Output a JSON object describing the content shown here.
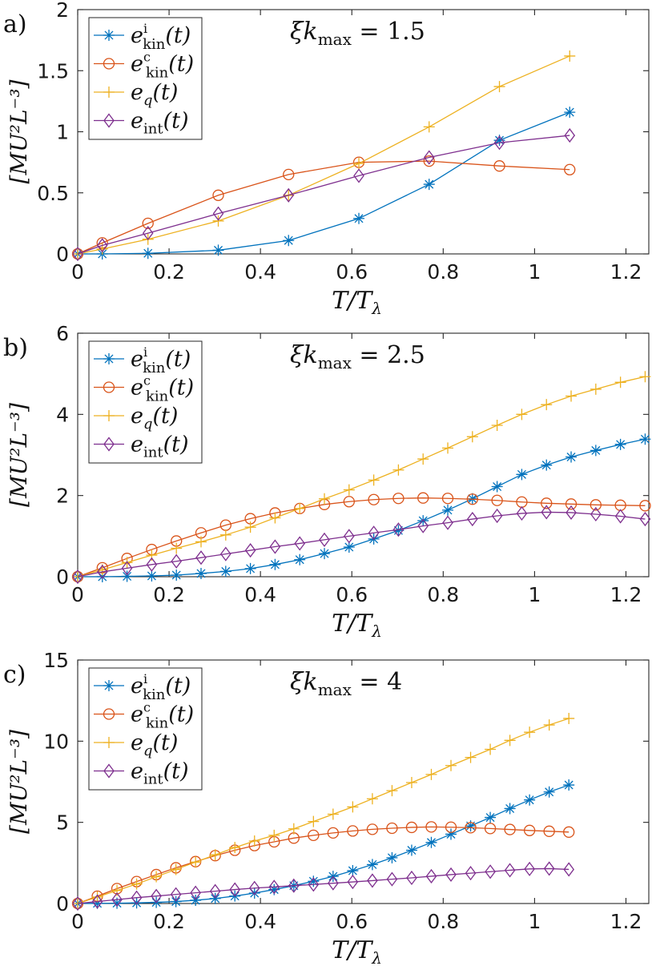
{
  "chart_data": [
    {
      "type": "line",
      "panel": "a)",
      "annotation": {
        "lhs": "ξk",
        "sub": "max",
        "rhs": "= 1.5"
      },
      "xlabel": {
        "main": "T/T",
        "sub": "λ"
      },
      "ylabel": "[MU²L⁻³]",
      "xlim": [
        0,
        1.25
      ],
      "ylim": [
        0,
        2
      ],
      "xticks": [
        "0",
        "0.2",
        "0.4",
        "0.6",
        "0.8",
        "1",
        "1.2"
      ],
      "yticks": [
        "0",
        "0.5",
        "1",
        "1.5",
        "2"
      ],
      "legend": {
        "position": "top-left"
      },
      "series": [
        {
          "name": "e_kin^i(t)",
          "label": {
            "base": "e",
            "sup": "i",
            "sub": "kin",
            "arg": "(t)"
          },
          "color": "#0072BD",
          "marker": "asterisk",
          "x": [
            0,
            0.0538,
            0.1538,
            0.3077,
            0.4615,
            0.6154,
            0.7692,
            0.9231,
            1.0769
          ],
          "y": [
            0,
            0,
            0.005,
            0.03,
            0.11,
            0.29,
            0.57,
            0.93,
            1.16
          ]
        },
        {
          "name": "e_kin^c(t)",
          "label": {
            "base": "e",
            "sup": "c",
            "sub": "kin",
            "arg": "(t)"
          },
          "color": "#D95319",
          "marker": "circle",
          "x": [
            0,
            0.0538,
            0.1538,
            0.3077,
            0.4615,
            0.6154,
            0.7692,
            0.9231,
            1.0769
          ],
          "y": [
            0,
            0.09,
            0.25,
            0.48,
            0.65,
            0.75,
            0.76,
            0.72,
            0.69
          ]
        },
        {
          "name": "e_q(t)",
          "label": {
            "base": "e",
            "sup": "",
            "sub": "q",
            "arg": "(t)"
          },
          "color": "#EDB120",
          "marker": "plus",
          "x": [
            0,
            0.0538,
            0.1538,
            0.3077,
            0.4615,
            0.6154,
            0.7692,
            0.9231,
            1.0769
          ],
          "y": [
            0,
            0.04,
            0.12,
            0.27,
            0.48,
            0.74,
            1.04,
            1.37,
            1.62
          ]
        },
        {
          "name": "e_int(t)",
          "label": {
            "base": "e",
            "sup": "",
            "sub": "int",
            "arg": "(t)"
          },
          "color": "#7E2F8E",
          "marker": "diamond",
          "x": [
            0,
            0.0538,
            0.1538,
            0.3077,
            0.4615,
            0.6154,
            0.7692,
            0.9231,
            1.0769
          ],
          "y": [
            0,
            0.07,
            0.17,
            0.33,
            0.48,
            0.64,
            0.79,
            0.91,
            0.97
          ]
        }
      ]
    },
    {
      "type": "line",
      "panel": "b)",
      "annotation": {
        "lhs": "ξk",
        "sub": "max",
        "rhs": "= 2.5"
      },
      "xlabel": {
        "main": "T/T",
        "sub": "λ"
      },
      "ylabel": "[MU²L⁻³]",
      "xlim": [
        0,
        1.25
      ],
      "ylim": [
        0,
        6
      ],
      "xticks": [
        "0",
        "0.2",
        "0.4",
        "0.6",
        "0.8",
        "1",
        "1.2"
      ],
      "yticks": [
        "0",
        "2",
        "4",
        "6"
      ],
      "legend": {
        "position": "top-left"
      },
      "series": [
        {
          "name": "e_kin^i(t)",
          "label": {
            "base": "e",
            "sup": "i",
            "sub": "kin",
            "arg": "(t)"
          },
          "color": "#0072BD",
          "marker": "asterisk",
          "x": [
            0,
            0.054,
            0.108,
            0.162,
            0.216,
            0.27,
            0.324,
            0.378,
            0.432,
            0.486,
            0.54,
            0.594,
            0.648,
            0.702,
            0.756,
            0.81,
            0.864,
            0.918,
            0.972,
            1.026,
            1.08,
            1.134,
            1.188,
            1.242
          ],
          "y": [
            0,
            0,
            0.01,
            0.02,
            0.04,
            0.08,
            0.13,
            0.2,
            0.3,
            0.42,
            0.57,
            0.73,
            0.93,
            1.14,
            1.38,
            1.64,
            1.92,
            2.22,
            2.52,
            2.75,
            2.95,
            3.11,
            3.26,
            3.39
          ]
        },
        {
          "name": "e_kin^c(t)",
          "label": {
            "base": "e",
            "sup": "c",
            "sub": "kin",
            "arg": "(t)"
          },
          "color": "#D95319",
          "marker": "circle",
          "x": [
            0,
            0.054,
            0.108,
            0.162,
            0.216,
            0.27,
            0.324,
            0.378,
            0.432,
            0.486,
            0.54,
            0.594,
            0.648,
            0.702,
            0.756,
            0.81,
            0.864,
            0.918,
            0.972,
            1.026,
            1.08,
            1.134,
            1.188,
            1.242
          ],
          "y": [
            0,
            0.22,
            0.45,
            0.67,
            0.88,
            1.08,
            1.27,
            1.43,
            1.57,
            1.68,
            1.78,
            1.85,
            1.9,
            1.93,
            1.94,
            1.93,
            1.91,
            1.88,
            1.84,
            1.81,
            1.79,
            1.77,
            1.76,
            1.75
          ]
        },
        {
          "name": "e_q(t)",
          "label": {
            "base": "e",
            "sup": "",
            "sub": "q",
            "arg": "(t)"
          },
          "color": "#EDB120",
          "marker": "plus",
          "x": [
            0,
            0.054,
            0.108,
            0.162,
            0.216,
            0.27,
            0.324,
            0.378,
            0.432,
            0.486,
            0.54,
            0.594,
            0.648,
            0.702,
            0.756,
            0.81,
            0.864,
            0.918,
            0.972,
            1.026,
            1.08,
            1.134,
            1.188,
            1.242
          ],
          "y": [
            0,
            0.17,
            0.35,
            0.53,
            0.7,
            0.86,
            1.03,
            1.22,
            1.45,
            1.68,
            1.92,
            2.14,
            2.38,
            2.63,
            2.9,
            3.17,
            3.45,
            3.73,
            4.0,
            4.24,
            4.45,
            4.62,
            4.79,
            4.93
          ]
        },
        {
          "name": "e_int(t)",
          "label": {
            "base": "e",
            "sup": "",
            "sub": "int",
            "arg": "(t)"
          },
          "color": "#7E2F8E",
          "marker": "diamond",
          "x": [
            0,
            0.054,
            0.108,
            0.162,
            0.216,
            0.27,
            0.324,
            0.378,
            0.432,
            0.486,
            0.54,
            0.594,
            0.648,
            0.702,
            0.756,
            0.81,
            0.864,
            0.918,
            0.972,
            1.026,
            1.08,
            1.134,
            1.188,
            1.242
          ],
          "y": [
            0,
            0.12,
            0.21,
            0.3,
            0.38,
            0.47,
            0.56,
            0.65,
            0.74,
            0.82,
            0.91,
            1.0,
            1.08,
            1.16,
            1.25,
            1.33,
            1.42,
            1.5,
            1.56,
            1.59,
            1.58,
            1.54,
            1.49,
            1.42
          ]
        }
      ]
    },
    {
      "type": "line",
      "panel": "c)",
      "annotation": {
        "lhs": "ξk",
        "sub": "max",
        "rhs": "= 4"
      },
      "xlabel": {
        "main": "T/T",
        "sub": "λ"
      },
      "ylabel": "[MU²L⁻³]",
      "xlim": [
        0,
        1.25
      ],
      "ylim": [
        0,
        15
      ],
      "xticks": [
        "0",
        "0.2",
        "0.4",
        "0.6",
        "0.8",
        "1",
        "1.2"
      ],
      "yticks": [
        "0",
        "5",
        "10",
        "15"
      ],
      "legend": {
        "position": "top-left"
      },
      "series": [
        {
          "name": "e_kin^i(t)",
          "label": {
            "base": "e",
            "sup": "i",
            "sub": "kin",
            "arg": "(t)"
          },
          "color": "#0072BD",
          "marker": "asterisk",
          "x": [
            0,
            0.043,
            0.086,
            0.129,
            0.172,
            0.215,
            0.258,
            0.301,
            0.344,
            0.387,
            0.43,
            0.473,
            0.516,
            0.559,
            0.602,
            0.645,
            0.688,
            0.731,
            0.774,
            0.817,
            0.86,
            0.903,
            0.946,
            0.989,
            1.032,
            1.075
          ],
          "y": [
            0,
            0.01,
            0.02,
            0.04,
            0.07,
            0.12,
            0.2,
            0.31,
            0.46,
            0.64,
            0.86,
            1.1,
            1.37,
            1.67,
            2.02,
            2.4,
            2.82,
            3.28,
            3.76,
            4.27,
            4.78,
            5.3,
            5.85,
            6.38,
            6.87,
            7.3
          ]
        },
        {
          "name": "e_kin^c(t)",
          "label": {
            "base": "e",
            "sup": "c",
            "sub": "kin",
            "arg": "(t)"
          },
          "color": "#D95319",
          "marker": "circle",
          "x": [
            0,
            0.043,
            0.086,
            0.129,
            0.172,
            0.215,
            0.258,
            0.301,
            0.344,
            0.387,
            0.43,
            0.473,
            0.516,
            0.559,
            0.602,
            0.645,
            0.688,
            0.731,
            0.774,
            0.817,
            0.86,
            0.903,
            0.946,
            0.989,
            1.032,
            1.075
          ],
          "y": [
            0,
            0.45,
            0.92,
            1.35,
            1.78,
            2.2,
            2.58,
            2.95,
            3.28,
            3.57,
            3.8,
            4.03,
            4.2,
            4.35,
            4.47,
            4.57,
            4.64,
            4.69,
            4.72,
            4.7,
            4.67,
            4.62,
            4.56,
            4.5,
            4.45,
            4.4
          ]
        },
        {
          "name": "e_q(t)",
          "label": {
            "base": "e",
            "sup": "",
            "sub": "q",
            "arg": "(t)"
          },
          "color": "#EDB120",
          "marker": "plus",
          "x": [
            0,
            0.043,
            0.086,
            0.129,
            0.172,
            0.215,
            0.258,
            0.301,
            0.344,
            0.387,
            0.43,
            0.473,
            0.516,
            0.559,
            0.602,
            0.645,
            0.688,
            0.731,
            0.774,
            0.817,
            0.86,
            0.903,
            0.946,
            0.989,
            1.032,
            1.075
          ],
          "y": [
            0,
            0.4,
            0.8,
            1.2,
            1.65,
            2.1,
            2.55,
            3.0,
            3.45,
            3.85,
            4.2,
            4.6,
            5.05,
            5.5,
            5.95,
            6.45,
            6.95,
            7.45,
            7.95,
            8.5,
            9.0,
            9.5,
            10.05,
            10.55,
            11.0,
            11.4
          ]
        },
        {
          "name": "e_int(t)",
          "label": {
            "base": "e",
            "sup": "",
            "sub": "int",
            "arg": "(t)"
          },
          "color": "#7E2F8E",
          "marker": "diamond",
          "x": [
            0,
            0.043,
            0.086,
            0.129,
            0.172,
            0.215,
            0.258,
            0.301,
            0.344,
            0.387,
            0.43,
            0.473,
            0.516,
            0.559,
            0.602,
            0.645,
            0.688,
            0.731,
            0.774,
            0.817,
            0.86,
            0.903,
            0.946,
            0.989,
            1.032,
            1.075
          ],
          "y": [
            0,
            0.12,
            0.24,
            0.36,
            0.46,
            0.56,
            0.66,
            0.76,
            0.86,
            0.95,
            1.02,
            1.1,
            1.17,
            1.25,
            1.33,
            1.41,
            1.5,
            1.58,
            1.68,
            1.78,
            1.87,
            1.96,
            2.05,
            2.13,
            2.15,
            2.1
          ]
        }
      ]
    }
  ]
}
